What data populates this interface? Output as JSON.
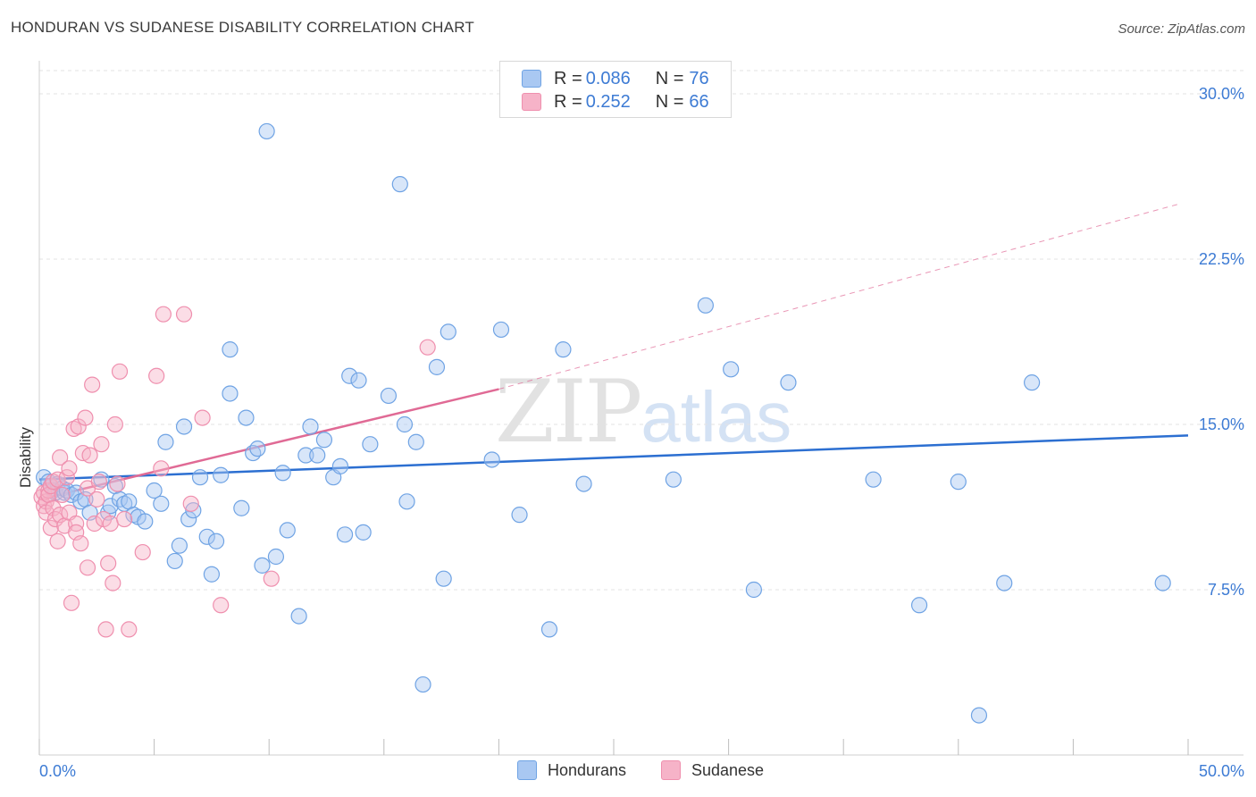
{
  "header": {
    "title": "HONDURAN VS SUDANESE DISABILITY CORRELATION CHART",
    "source": "Source: ZipAtlas.com"
  },
  "watermark": {
    "zip": "ZIP",
    "atlas": "atlas"
  },
  "legend": {
    "rows": [
      {
        "r_label": "R = ",
        "r_value": "0.086",
        "n_label": "N = ",
        "n_value": "76",
        "color": "#a9c8f2"
      },
      {
        "r_label": "R = ",
        "r_value": "0.252",
        "n_label": "N = ",
        "n_value": "66",
        "color": "#f6b3c8"
      }
    ]
  },
  "bottom_legend": {
    "a": "Hondurans",
    "b": "Sudanese"
  },
  "chart_data": {
    "type": "scatter",
    "title": "HONDURAN VS SUDANESE DISABILITY CORRELATION CHART",
    "xlabel": "",
    "ylabel": "Disability",
    "xlim": [
      0,
      50
    ],
    "ylim": [
      0,
      31.5
    ],
    "x_tick_labels": [
      "0.0%",
      "50.0%"
    ],
    "y_ticks": [
      7.5,
      15.0,
      22.5,
      30.0
    ],
    "y_tick_labels": [
      "7.5%",
      "15.0%",
      "22.5%",
      "30.0%"
    ],
    "series": [
      {
        "name": "Hondurans",
        "color": "#6fa3e4",
        "fill": "#a9c8f2",
        "trend": {
          "x0": 0,
          "y0": 12.5,
          "x1": 50,
          "y1": 14.5,
          "color": "#2c6fd1"
        },
        "points": [
          [
            0.2,
            12.6
          ],
          [
            0.4,
            12.4
          ],
          [
            0.5,
            12.2
          ],
          [
            0.6,
            12.0
          ],
          [
            0.7,
            11.9
          ],
          [
            0.8,
            12.3
          ],
          [
            1.0,
            12.1
          ],
          [
            1.1,
            11.9
          ],
          [
            1.2,
            12.0
          ],
          [
            1.4,
            11.8
          ],
          [
            1.6,
            11.9
          ],
          [
            1.8,
            11.5
          ],
          [
            2.0,
            11.6
          ],
          [
            2.2,
            11.0
          ],
          [
            2.7,
            12.5
          ],
          [
            3.0,
            11.0
          ],
          [
            3.1,
            11.3
          ],
          [
            3.3,
            12.2
          ],
          [
            3.5,
            11.6
          ],
          [
            3.7,
            11.4
          ],
          [
            3.9,
            11.5
          ],
          [
            4.1,
            10.9
          ],
          [
            4.3,
            10.8
          ],
          [
            4.6,
            10.6
          ],
          [
            5.0,
            12.0
          ],
          [
            5.3,
            11.4
          ],
          [
            5.5,
            14.2
          ],
          [
            5.9,
            8.8
          ],
          [
            6.1,
            9.5
          ],
          [
            6.3,
            14.9
          ],
          [
            6.5,
            10.7
          ],
          [
            6.7,
            11.1
          ],
          [
            7.0,
            12.6
          ],
          [
            7.3,
            9.9
          ],
          [
            7.5,
            8.2
          ],
          [
            7.7,
            9.7
          ],
          [
            7.9,
            12.7
          ],
          [
            8.3,
            16.4
          ],
          [
            8.3,
            18.4
          ],
          [
            8.8,
            11.2
          ],
          [
            9.0,
            15.3
          ],
          [
            9.3,
            13.7
          ],
          [
            9.5,
            13.9
          ],
          [
            9.7,
            8.6
          ],
          [
            9.9,
            28.3
          ],
          [
            10.3,
            9.0
          ],
          [
            10.6,
            12.8
          ],
          [
            10.8,
            10.2
          ],
          [
            11.3,
            6.3
          ],
          [
            11.6,
            13.6
          ],
          [
            11.8,
            14.9
          ],
          [
            12.1,
            13.6
          ],
          [
            12.4,
            14.3
          ],
          [
            12.8,
            12.6
          ],
          [
            13.1,
            13.1
          ],
          [
            13.3,
            10.0
          ],
          [
            13.5,
            17.2
          ],
          [
            13.9,
            17.0
          ],
          [
            14.1,
            10.1
          ],
          [
            14.4,
            14.1
          ],
          [
            15.2,
            16.3
          ],
          [
            15.7,
            25.9
          ],
          [
            15.9,
            15.0
          ],
          [
            16.0,
            11.5
          ],
          [
            16.4,
            14.2
          ],
          [
            16.7,
            3.2
          ],
          [
            17.3,
            17.6
          ],
          [
            17.6,
            8.0
          ],
          [
            17.8,
            19.2
          ],
          [
            19.7,
            13.4
          ],
          [
            20.1,
            19.3
          ],
          [
            20.9,
            10.9
          ],
          [
            22.2,
            5.7
          ],
          [
            22.8,
            18.4
          ],
          [
            23.7,
            12.3
          ],
          [
            27.6,
            12.5
          ],
          [
            29.0,
            20.4
          ],
          [
            30.1,
            17.5
          ],
          [
            31.1,
            7.5
          ],
          [
            32.6,
            16.9
          ],
          [
            36.3,
            12.5
          ],
          [
            38.3,
            6.8
          ],
          [
            40.0,
            12.4
          ],
          [
            42.0,
            7.8
          ],
          [
            43.2,
            16.9
          ],
          [
            48.9,
            7.8
          ],
          [
            40.9,
            1.8
          ]
        ]
      },
      {
        "name": "Sudanese",
        "color": "#ef8fae",
        "fill": "#f6b3c8",
        "trend": {
          "x0": 0,
          "y0": 11.6,
          "x1": 20,
          "y1": 16.6,
          "x_dash_end": 49.6,
          "y_dash_end": 25.0,
          "color": "#e06a95"
        },
        "points": [
          [
            0.1,
            11.7
          ],
          [
            0.2,
            11.3
          ],
          [
            0.2,
            11.9
          ],
          [
            0.3,
            11.5
          ],
          [
            0.3,
            11.0
          ],
          [
            0.4,
            12.0
          ],
          [
            0.4,
            11.8
          ],
          [
            0.5,
            12.2
          ],
          [
            0.5,
            10.3
          ],
          [
            0.6,
            12.4
          ],
          [
            0.6,
            11.2
          ],
          [
            0.7,
            10.7
          ],
          [
            0.8,
            12.5
          ],
          [
            0.8,
            9.7
          ],
          [
            0.9,
            13.5
          ],
          [
            0.9,
            10.9
          ],
          [
            1.0,
            11.8
          ],
          [
            1.1,
            10.4
          ],
          [
            1.2,
            12.6
          ],
          [
            1.3,
            13.0
          ],
          [
            1.3,
            11.0
          ],
          [
            1.4,
            6.9
          ],
          [
            1.5,
            14.8
          ],
          [
            1.6,
            10.5
          ],
          [
            1.6,
            10.1
          ],
          [
            1.7,
            14.9
          ],
          [
            1.8,
            9.6
          ],
          [
            1.9,
            13.7
          ],
          [
            2.0,
            15.3
          ],
          [
            2.1,
            12.1
          ],
          [
            2.1,
            8.5
          ],
          [
            2.2,
            13.6
          ],
          [
            2.3,
            16.8
          ],
          [
            2.4,
            10.5
          ],
          [
            2.5,
            11.6
          ],
          [
            2.6,
            12.4
          ],
          [
            2.7,
            14.1
          ],
          [
            2.8,
            10.7
          ],
          [
            2.9,
            5.7
          ],
          [
            3.0,
            8.7
          ],
          [
            3.1,
            10.5
          ],
          [
            3.2,
            7.8
          ],
          [
            3.3,
            15.0
          ],
          [
            3.4,
            12.3
          ],
          [
            3.5,
            17.4
          ],
          [
            3.7,
            10.7
          ],
          [
            3.9,
            5.7
          ],
          [
            4.5,
            9.2
          ],
          [
            5.1,
            17.2
          ],
          [
            5.3,
            13.0
          ],
          [
            5.4,
            20.0
          ],
          [
            6.3,
            20.0
          ],
          [
            6.6,
            11.4
          ],
          [
            7.1,
            15.3
          ],
          [
            7.9,
            6.8
          ],
          [
            10.1,
            8.0
          ],
          [
            16.9,
            18.5
          ]
        ]
      }
    ]
  }
}
